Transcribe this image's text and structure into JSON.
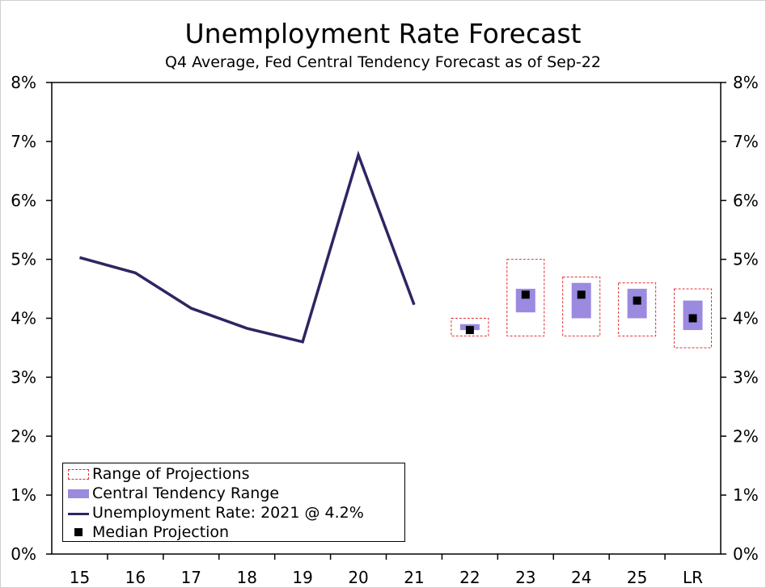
{
  "chart_data": {
    "type": "line",
    "title": "Unemployment Rate Forecast",
    "subtitle": "Q4 Average, Fed Central Tendency Forecast as of Sep-22",
    "categories": [
      "15",
      "16",
      "17",
      "18",
      "19",
      "20",
      "21",
      "22",
      "23",
      "24",
      "25",
      "LR"
    ],
    "ylim": [
      0,
      8
    ],
    "y_ticks": [
      "0%",
      "1%",
      "2%",
      "3%",
      "4%",
      "5%",
      "6%",
      "7%",
      "8%"
    ],
    "grid": false,
    "legend_position": "bottom-left",
    "series": [
      {
        "name": "Unemployment Rate: 2021 @ 4.2%",
        "x": [
          "15",
          "16",
          "17",
          "18",
          "19",
          "20",
          "21"
        ],
        "values": [
          5.03,
          4.77,
          4.17,
          3.83,
          3.6,
          6.77,
          4.23
        ]
      },
      {
        "name": "Range of Projections",
        "x": [
          "22",
          "23",
          "24",
          "25",
          "LR"
        ],
        "low": [
          3.7,
          3.7,
          3.7,
          3.7,
          3.5
        ],
        "high": [
          4.0,
          5.0,
          4.7,
          4.6,
          4.5
        ]
      },
      {
        "name": "Central Tendency Range",
        "x": [
          "22",
          "23",
          "24",
          "25",
          "LR"
        ],
        "low": [
          3.8,
          4.1,
          4.0,
          4.0,
          3.8
        ],
        "high": [
          3.9,
          4.5,
          4.6,
          4.5,
          4.3
        ]
      },
      {
        "name": "Median Projection",
        "x": [
          "22",
          "23",
          "24",
          "25",
          "LR"
        ],
        "values": [
          3.8,
          4.4,
          4.4,
          4.3,
          4.0
        ]
      }
    ],
    "colors": {
      "line": "#2e2563",
      "range_border": "#e03131",
      "central_tendency": "#9b8ae0",
      "median": "#000000"
    }
  },
  "legend": {
    "range": "Range of Projections",
    "central_tendency": "Central Tendency Range",
    "line": "Unemployment Rate: 2021 @ 4.2%",
    "median": "Median Projection"
  }
}
